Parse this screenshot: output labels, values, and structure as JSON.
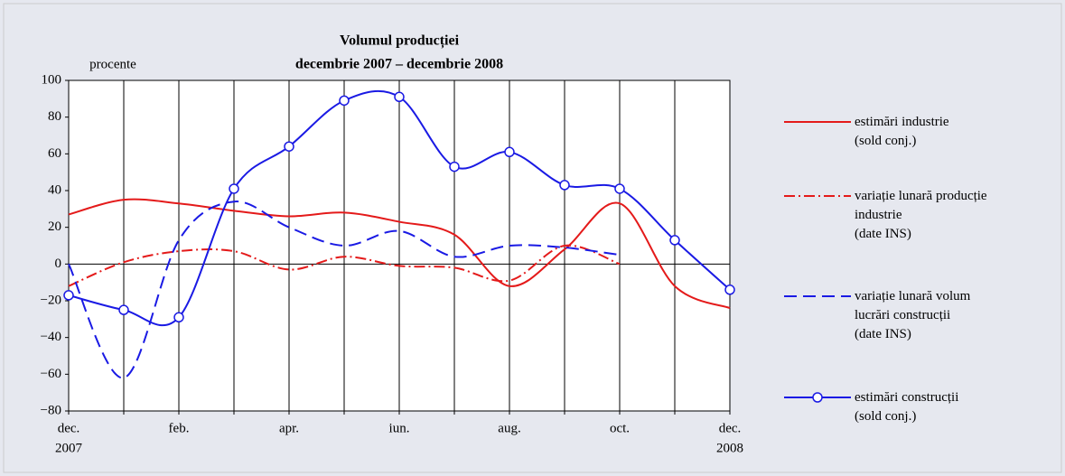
{
  "chart_data": {
    "type": "line",
    "title": "Volumul producției",
    "subtitle": "decembrie 2007 – decembrie 2008",
    "y_label": "procente",
    "categories": [
      "dec.",
      null,
      "feb.",
      null,
      "apr.",
      null,
      "iun.",
      null,
      "aug.",
      null,
      "oct.",
      null,
      "dec."
    ],
    "year_labels": [
      "2007",
      null,
      null,
      null,
      null,
      null,
      null,
      null,
      null,
      null,
      null,
      null,
      "2008"
    ],
    "ylim": [
      -80,
      100
    ],
    "yticks": [
      {
        "value": -80,
        "label": "−80"
      },
      {
        "value": -60,
        "label": "−60"
      },
      {
        "value": -40,
        "label": "−40"
      },
      {
        "value": -20,
        "label": "−20"
      },
      0,
      20,
      40,
      60,
      80,
      100
    ],
    "grid": "x",
    "series": [
      {
        "name": "estimări industrie\n(sold conj.)",
        "color": "#e41a1a",
        "dash": "solid",
        "marker": false,
        "values": [
          27,
          35,
          33,
          29,
          26,
          28,
          23,
          16,
          -12,
          8,
          33,
          -12,
          -24
        ]
      },
      {
        "name": "variație lunară producție\nindustrie\n(date INS)",
        "color": "#e41a1a",
        "dash": "dashdot",
        "marker": false,
        "values": [
          -12,
          1,
          7,
          7,
          -3,
          4,
          -1,
          -2,
          -9,
          10,
          0,
          null,
          null
        ]
      },
      {
        "name": "variație lunară volum\nlucrări construcții\n(date INS)",
        "color": "#1a1ae4",
        "dash": "dashed",
        "marker": false,
        "values": [
          0,
          -62,
          13,
          34,
          20,
          10,
          18,
          4,
          10,
          9,
          5,
          null,
          null
        ]
      },
      {
        "name": "estimări construcții\n(sold conj.)",
        "color": "#1a1ae4",
        "dash": "solid",
        "marker": true,
        "values": [
          -17,
          -25,
          -29,
          41,
          64,
          89,
          91,
          53,
          61,
          43,
          41,
          13,
          -14
        ]
      }
    ]
  }
}
